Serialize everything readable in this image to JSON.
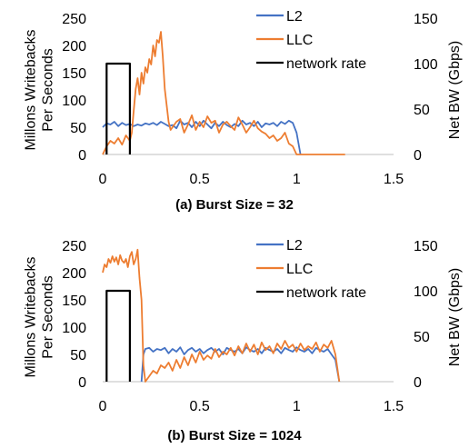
{
  "chart_data": [
    {
      "type": "line",
      "caption": "(a) Burst Size = 32",
      "ylabel_left": [
        "Millons Writebacks",
        "Per Seconds"
      ],
      "ylabel_right": "Net BW (Gbps)",
      "xticks": [
        "0",
        "0.5",
        "1",
        "1.5"
      ],
      "yticks_left": [
        "0",
        "50",
        "100",
        "150",
        "200",
        "250"
      ],
      "yticks_right": [
        "0",
        "50",
        "100",
        "150"
      ],
      "xlim": [
        0,
        1.5
      ],
      "ylim_left": [
        0,
        250
      ],
      "ylim_right": [
        0,
        150
      ],
      "legend_position": "top-right",
      "series": [
        {
          "name": "L2",
          "axis": "left",
          "color": "#4472C4",
          "x": [
            0.0,
            0.02,
            0.04,
            0.06,
            0.08,
            0.1,
            0.12,
            0.14,
            0.16,
            0.18,
            0.2,
            0.22,
            0.24,
            0.26,
            0.28,
            0.3,
            0.32,
            0.34,
            0.36,
            0.38,
            0.4,
            0.42,
            0.44,
            0.46,
            0.48,
            0.5,
            0.52,
            0.54,
            0.56,
            0.58,
            0.6,
            0.62,
            0.64,
            0.66,
            0.68,
            0.7,
            0.72,
            0.74,
            0.76,
            0.78,
            0.8,
            0.82,
            0.84,
            0.86,
            0.88,
            0.9,
            0.92,
            0.94,
            0.96,
            0.98,
            1.0,
            1.02
          ],
          "y": [
            50,
            57,
            55,
            60,
            52,
            58,
            54,
            56,
            52,
            55,
            53,
            57,
            55,
            58,
            54,
            60,
            56,
            52,
            54,
            48,
            62,
            55,
            58,
            50,
            60,
            52,
            62,
            55,
            48,
            58,
            52,
            60,
            54,
            50,
            56,
            52,
            62,
            55,
            58,
            52,
            60,
            50,
            57,
            55,
            58,
            52,
            60,
            56,
            62,
            58,
            40,
            0
          ]
        },
        {
          "name": "LLC",
          "axis": "left",
          "color": "#ED7D31",
          "x": [
            0.0,
            0.02,
            0.04,
            0.06,
            0.08,
            0.1,
            0.12,
            0.14,
            0.15,
            0.16,
            0.17,
            0.18,
            0.19,
            0.2,
            0.21,
            0.22,
            0.23,
            0.24,
            0.25,
            0.26,
            0.27,
            0.28,
            0.29,
            0.3,
            0.31,
            0.32,
            0.33,
            0.34,
            0.35,
            0.36,
            0.38,
            0.4,
            0.42,
            0.44,
            0.46,
            0.48,
            0.5,
            0.52,
            0.54,
            0.56,
            0.58,
            0.6,
            0.62,
            0.64,
            0.66,
            0.68,
            0.7,
            0.72,
            0.74,
            0.76,
            0.78,
            0.8,
            0.82,
            0.84,
            0.86,
            0.88,
            0.9,
            0.92,
            0.94,
            0.96,
            0.98,
            1.0,
            1.02,
            1.05,
            1.1,
            1.15,
            1.2,
            1.25
          ],
          "y": [
            0,
            15,
            25,
            20,
            30,
            18,
            35,
            25,
            40,
            80,
            120,
            140,
            110,
            150,
            130,
            160,
            150,
            175,
            165,
            200,
            180,
            210,
            205,
            225,
            180,
            120,
            90,
            60,
            45,
            50,
            60,
            65,
            40,
            55,
            72,
            45,
            60,
            50,
            70,
            58,
            62,
            40,
            55,
            60,
            52,
            45,
            68,
            55,
            40,
            50,
            62,
            48,
            42,
            38,
            30,
            35,
            25,
            30,
            40,
            20,
            15,
            0,
            0,
            0,
            0,
            0,
            0,
            0
          ]
        },
        {
          "name": "network rate",
          "axis": "right",
          "color": "#000000",
          "x": [
            0.02,
            0.02,
            0.14,
            0.14
          ],
          "y": [
            0,
            100,
            100,
            0
          ]
        }
      ]
    },
    {
      "type": "line",
      "caption": "(b) Burst Size = 1024",
      "ylabel_left": [
        "Millons Writebacks",
        "Per Seconds"
      ],
      "ylabel_right": "Net BW (Gbps)",
      "xticks": [
        "0",
        "0.5",
        "1",
        "1.5"
      ],
      "yticks_left": [
        "0",
        "50",
        "100",
        "150",
        "200",
        "250"
      ],
      "yticks_right": [
        "0",
        "50",
        "100",
        "150"
      ],
      "xlim": [
        0,
        1.5
      ],
      "ylim_left": [
        0,
        250
      ],
      "ylim_right": [
        0,
        150
      ],
      "legend_position": "top-right",
      "series": [
        {
          "name": "L2",
          "axis": "left",
          "color": "#4472C4",
          "x": [
            0.2,
            0.21,
            0.22,
            0.24,
            0.26,
            0.28,
            0.3,
            0.32,
            0.34,
            0.36,
            0.38,
            0.4,
            0.42,
            0.44,
            0.46,
            0.48,
            0.5,
            0.52,
            0.54,
            0.56,
            0.58,
            0.6,
            0.62,
            0.64,
            0.66,
            0.68,
            0.7,
            0.72,
            0.74,
            0.76,
            0.78,
            0.8,
            0.82,
            0.84,
            0.86,
            0.88,
            0.9,
            0.92,
            0.94,
            0.96,
            0.98,
            1.0,
            1.02,
            1.04,
            1.06,
            1.08,
            1.1,
            1.12,
            1.14,
            1.16,
            1.18,
            1.2,
            1.22
          ],
          "y": [
            0,
            50,
            60,
            62,
            55,
            60,
            58,
            62,
            52,
            60,
            55,
            63,
            50,
            58,
            62,
            55,
            60,
            52,
            58,
            62,
            55,
            60,
            50,
            62,
            58,
            55,
            60,
            52,
            63,
            58,
            55,
            60,
            52,
            62,
            58,
            55,
            60,
            52,
            62,
            58,
            55,
            63,
            58,
            55,
            60,
            52,
            62,
            58,
            55,
            60,
            50,
            40,
            0
          ]
        },
        {
          "name": "LLC",
          "axis": "left",
          "color": "#ED7D31",
          "x": [
            0.0,
            0.01,
            0.02,
            0.03,
            0.04,
            0.05,
            0.06,
            0.07,
            0.08,
            0.09,
            0.1,
            0.11,
            0.12,
            0.13,
            0.14,
            0.15,
            0.16,
            0.17,
            0.18,
            0.19,
            0.2,
            0.21,
            0.22,
            0.24,
            0.26,
            0.28,
            0.3,
            0.32,
            0.34,
            0.36,
            0.38,
            0.4,
            0.42,
            0.44,
            0.46,
            0.48,
            0.5,
            0.52,
            0.54,
            0.56,
            0.58,
            0.6,
            0.62,
            0.64,
            0.66,
            0.68,
            0.7,
            0.72,
            0.74,
            0.76,
            0.78,
            0.8,
            0.82,
            0.84,
            0.86,
            0.88,
            0.9,
            0.92,
            0.94,
            0.96,
            0.98,
            1.0,
            1.02,
            1.04,
            1.06,
            1.08,
            1.1,
            1.12,
            1.14,
            1.16,
            1.18,
            1.2,
            1.22
          ],
          "y": [
            200,
            215,
            210,
            225,
            218,
            230,
            220,
            228,
            215,
            232,
            222,
            218,
            225,
            210,
            230,
            238,
            215,
            225,
            242,
            190,
            150,
            30,
            0,
            10,
            20,
            15,
            30,
            25,
            35,
            20,
            40,
            25,
            45,
            30,
            50,
            35,
            55,
            40,
            48,
            42,
            60,
            45,
            55,
            50,
            62,
            48,
            65,
            52,
            70,
            55,
            68,
            50,
            72,
            58,
            65,
            52,
            70,
            60,
            75,
            62,
            68,
            55,
            70,
            58,
            65,
            60,
            72,
            55,
            68,
            62,
            75,
            50,
            0
          ]
        },
        {
          "name": "network rate",
          "axis": "right",
          "color": "#000000",
          "x": [
            0.02,
            0.02,
            0.14,
            0.14
          ],
          "y": [
            0,
            100,
            100,
            0
          ]
        }
      ]
    }
  ]
}
